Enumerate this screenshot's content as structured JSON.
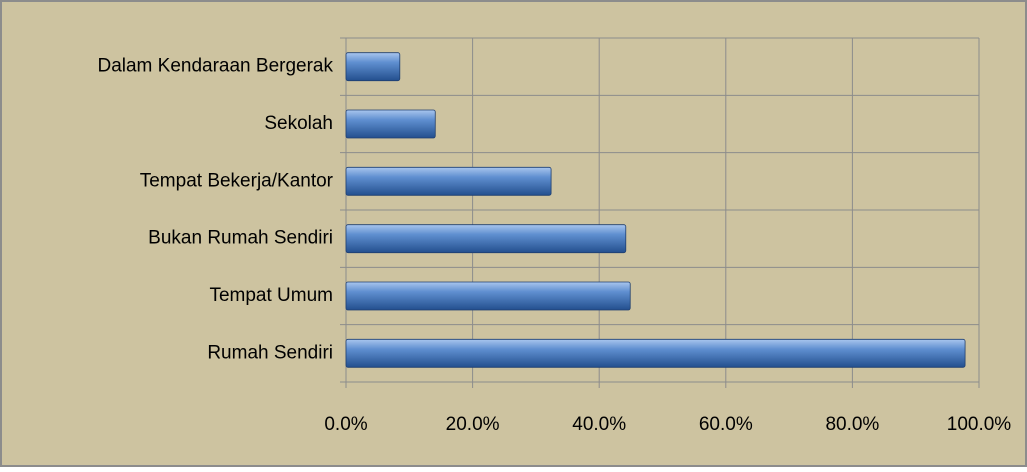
{
  "chart_data": {
    "type": "hbar",
    "categories": [
      "Dalam Kendaraan Bergerak",
      "Sekolah",
      "Tempat Bekerja/Kantor",
      "Bukan Rumah Sendiri",
      "Tempat Umum",
      "Rumah Sendiri"
    ],
    "values": [
      8.5,
      14.1,
      32.4,
      44.2,
      44.9,
      97.8
    ],
    "color": "#3f6fb0",
    "xlim": [
      0,
      100
    ],
    "xticks": [
      {
        "value": 0,
        "label": "0.0%"
      },
      {
        "value": 20,
        "label": "20.0%"
      },
      {
        "value": 40,
        "label": "40.0%"
      },
      {
        "value": 60,
        "label": "60.0%"
      },
      {
        "value": 80,
        "label": "80.0%"
      },
      {
        "value": 100,
        "label": "100.0%"
      }
    ],
    "grid": true
  }
}
